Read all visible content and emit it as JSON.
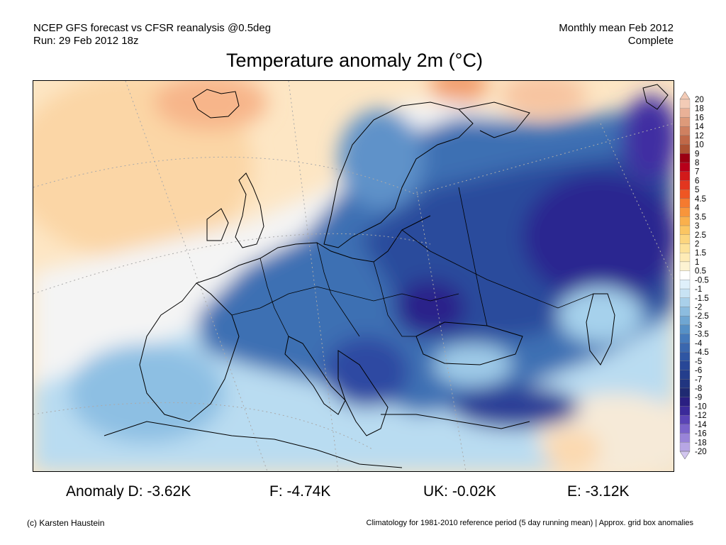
{
  "header": {
    "line1_left": "NCEP GFS forecast vs CFSR reanalysis @0.5deg",
    "line2_left": "Run: 29 Feb 2012 18z",
    "line1_right": "Monthly mean Feb 2012",
    "line2_right": "Complete"
  },
  "title": "Temperature anomaly 2m (°C)",
  "colorbar": {
    "labels": [
      "20",
      "18",
      "16",
      "14",
      "12",
      "10",
      "9",
      "8",
      "7",
      "6",
      "5",
      "4.5",
      "4",
      "3.5",
      "3",
      "2.5",
      "2",
      "1.5",
      "1",
      "0.5",
      "-0.5",
      "-1",
      "-1.5",
      "-2",
      "-2.5",
      "-3",
      "-3.5",
      "-4",
      "-4.5",
      "-5",
      "-6",
      "-7",
      "-8",
      "-9",
      "-10",
      "-12",
      "-14",
      "-16",
      "-18",
      "-20"
    ],
    "colors": [
      "#f3cbb6",
      "#e9b197",
      "#dd9a7a",
      "#cf8060",
      "#c06848",
      "#ad5233",
      "#9b0012",
      "#b8001a",
      "#d21a1a",
      "#e3361f",
      "#ef5623",
      "#f57a2f",
      "#f8953b",
      "#fab04c",
      "#fbc562",
      "#fcd57e",
      "#fde29a",
      "#feebb6",
      "#fdf3d2",
      "#ffffff",
      "#dff0fb",
      "#c8e3f4",
      "#a9d0ea",
      "#8cbcdf",
      "#6fa6d2",
      "#5690c6",
      "#457abb",
      "#3a67ae",
      "#2f56a3",
      "#284797",
      "#243e8c",
      "#213580",
      "#1f2a72",
      "#2a1f82",
      "#3b2a9a",
      "#5a44b6",
      "#7a63ca",
      "#9984d8",
      "#b7a6e4",
      "#d2c6ef"
    ]
  },
  "stats": {
    "d": "Anomaly D: -3.62K",
    "f": "F: -4.74K",
    "uk": "UK: -0.02K",
    "e": "E: -3.12K"
  },
  "footer": {
    "credit": "(c) Karsten Haustein",
    "note": "Climatology for 1981-2010 reference period (5 day running mean) | Approx. grid box anomalies"
  }
}
